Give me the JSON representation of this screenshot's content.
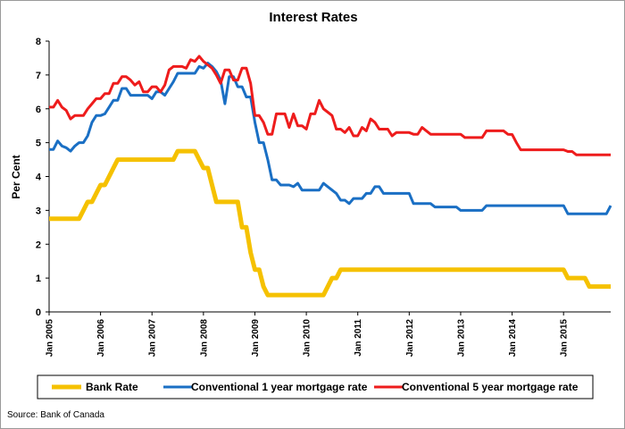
{
  "chart_data": {
    "type": "line",
    "title": "Interest Rates",
    "xlabel": "",
    "ylabel": "Per Cent",
    "ylim": [
      0,
      8
    ],
    "yticks": [
      "0",
      "1",
      "2",
      "3",
      "4",
      "5",
      "6",
      "7",
      "8"
    ],
    "xlim": [
      "2005-01",
      "2015-12"
    ],
    "xticks": [
      {
        "label": "Jan 2005",
        "date": "2005-01"
      },
      {
        "label": "Jan 2006",
        "date": "2006-01"
      },
      {
        "label": "Jan 2007",
        "date": "2007-01"
      },
      {
        "label": "Jan 2008",
        "date": "2008-01"
      },
      {
        "label": "Jan 2009",
        "date": "2009-01"
      },
      {
        "label": "Jan 2010",
        "date": "2010-01"
      },
      {
        "label": "Jan 2011",
        "date": "2011-01"
      },
      {
        "label": "Jan 2012",
        "date": "2012-01"
      },
      {
        "label": "Jan 2013",
        "date": "2013-01"
      },
      {
        "label": "Jan 2014",
        "date": "2014-01"
      },
      {
        "label": "Jan 2015",
        "date": "2015-01"
      }
    ],
    "grid": false,
    "legend_position": "bottom",
    "source": "Source: Bank of Canada",
    "series": [
      {
        "name": "Bank Rate",
        "color": "#f5c100",
        "points": [
          [
            "2005-01",
            2.75
          ],
          [
            "2005-08",
            2.75
          ],
          [
            "2005-09",
            3.0
          ],
          [
            "2005-10",
            3.25
          ],
          [
            "2005-11",
            3.25
          ],
          [
            "2005-12",
            3.5
          ],
          [
            "2006-01",
            3.75
          ],
          [
            "2006-02",
            3.75
          ],
          [
            "2006-03",
            4.0
          ],
          [
            "2006-04",
            4.25
          ],
          [
            "2006-05",
            4.5
          ],
          [
            "2007-06",
            4.5
          ],
          [
            "2007-07",
            4.75
          ],
          [
            "2007-11",
            4.75
          ],
          [
            "2007-12",
            4.5
          ],
          [
            "2008-01",
            4.25
          ],
          [
            "2008-02",
            4.25
          ],
          [
            "2008-03",
            3.75
          ],
          [
            "2008-04",
            3.25
          ],
          [
            "2008-09",
            3.25
          ],
          [
            "2008-10",
            2.5
          ],
          [
            "2008-11",
            2.5
          ],
          [
            "2008-12",
            1.75
          ],
          [
            "2009-01",
            1.25
          ],
          [
            "2009-02",
            1.25
          ],
          [
            "2009-03",
            0.75
          ],
          [
            "2009-04",
            0.5
          ],
          [
            "2010-05",
            0.5
          ],
          [
            "2010-06",
            0.75
          ],
          [
            "2010-07",
            1.0
          ],
          [
            "2010-08",
            1.0
          ],
          [
            "2010-09",
            1.25
          ],
          [
            "2015-01",
            1.25
          ],
          [
            "2015-02",
            1.0
          ],
          [
            "2015-06",
            1.0
          ],
          [
            "2015-07",
            0.75
          ],
          [
            "2015-12",
            0.75
          ]
        ]
      },
      {
        "name": "Conventional 1 year mortgage rate",
        "color": "#1a6fc4",
        "points": [
          [
            "2005-01",
            4.8
          ],
          [
            "2005-02",
            4.8
          ],
          [
            "2005-03",
            5.05
          ],
          [
            "2005-04",
            4.9
          ],
          [
            "2005-05",
            4.85
          ],
          [
            "2005-06",
            4.75
          ],
          [
            "2005-07",
            4.9
          ],
          [
            "2005-08",
            5.0
          ],
          [
            "2005-09",
            5.0
          ],
          [
            "2005-10",
            5.2
          ],
          [
            "2005-11",
            5.6
          ],
          [
            "2005-12",
            5.8
          ],
          [
            "2006-01",
            5.8
          ],
          [
            "2006-02",
            5.85
          ],
          [
            "2006-03",
            6.05
          ],
          [
            "2006-04",
            6.25
          ],
          [
            "2006-05",
            6.25
          ],
          [
            "2006-06",
            6.6
          ],
          [
            "2006-07",
            6.6
          ],
          [
            "2006-08",
            6.4
          ],
          [
            "2006-12",
            6.4
          ],
          [
            "2007-01",
            6.3
          ],
          [
            "2007-02",
            6.5
          ],
          [
            "2007-03",
            6.5
          ],
          [
            "2007-04",
            6.4
          ],
          [
            "2007-05",
            6.6
          ],
          [
            "2007-06",
            6.8
          ],
          [
            "2007-07",
            7.05
          ],
          [
            "2007-11",
            7.05
          ],
          [
            "2007-12",
            7.25
          ],
          [
            "2008-01",
            7.2
          ],
          [
            "2008-02",
            7.35
          ],
          [
            "2008-03",
            7.25
          ],
          [
            "2008-04",
            7.1
          ],
          [
            "2008-05",
            6.85
          ],
          [
            "2008-06",
            6.15
          ],
          [
            "2008-07",
            6.95
          ],
          [
            "2008-08",
            6.95
          ],
          [
            "2008-09",
            6.65
          ],
          [
            "2008-10",
            6.65
          ],
          [
            "2008-11",
            6.35
          ],
          [
            "2008-12",
            6.35
          ],
          [
            "2009-01",
            5.6
          ],
          [
            "2009-02",
            5.0
          ],
          [
            "2009-03",
            5.0
          ],
          [
            "2009-04",
            4.5
          ],
          [
            "2009-05",
            3.9
          ],
          [
            "2009-06",
            3.9
          ],
          [
            "2009-07",
            3.75
          ],
          [
            "2009-09",
            3.75
          ],
          [
            "2009-10",
            3.7
          ],
          [
            "2009-11",
            3.8
          ],
          [
            "2009-12",
            3.6
          ],
          [
            "2010-04",
            3.6
          ],
          [
            "2010-05",
            3.8
          ],
          [
            "2010-06",
            3.7
          ],
          [
            "2010-07",
            3.6
          ],
          [
            "2010-08",
            3.5
          ],
          [
            "2010-09",
            3.3
          ],
          [
            "2010-10",
            3.3
          ],
          [
            "2010-11",
            3.2
          ],
          [
            "2010-12",
            3.35
          ],
          [
            "2011-01",
            3.35
          ],
          [
            "2011-02",
            3.35
          ],
          [
            "2011-03",
            3.5
          ],
          [
            "2011-04",
            3.5
          ],
          [
            "2011-05",
            3.7
          ],
          [
            "2011-06",
            3.7
          ],
          [
            "2011-07",
            3.5
          ],
          [
            "2012-01",
            3.5
          ],
          [
            "2012-02",
            3.2
          ],
          [
            "2012-06",
            3.2
          ],
          [
            "2012-07",
            3.1
          ],
          [
            "2012-12",
            3.1
          ],
          [
            "2013-01",
            3.0
          ],
          [
            "2013-06",
            3.0
          ],
          [
            "2013-07",
            3.14
          ],
          [
            "2015-01",
            3.14
          ],
          [
            "2015-02",
            2.9
          ],
          [
            "2015-11",
            2.9
          ],
          [
            "2015-12",
            3.14
          ]
        ]
      },
      {
        "name": "Conventional 5 year mortgage rate",
        "color": "#ee1c1c",
        "points": [
          [
            "2005-01",
            6.05
          ],
          [
            "2005-02",
            6.05
          ],
          [
            "2005-03",
            6.25
          ],
          [
            "2005-04",
            6.05
          ],
          [
            "2005-05",
            5.95
          ],
          [
            "2005-06",
            5.7
          ],
          [
            "2005-07",
            5.8
          ],
          [
            "2005-09",
            5.8
          ],
          [
            "2005-10",
            6.0
          ],
          [
            "2005-11",
            6.15
          ],
          [
            "2005-12",
            6.3
          ],
          [
            "2006-01",
            6.3
          ],
          [
            "2006-02",
            6.45
          ],
          [
            "2006-03",
            6.45
          ],
          [
            "2006-04",
            6.75
          ],
          [
            "2006-05",
            6.75
          ],
          [
            "2006-06",
            6.95
          ],
          [
            "2006-07",
            6.95
          ],
          [
            "2006-08",
            6.85
          ],
          [
            "2006-09",
            6.7
          ],
          [
            "2006-10",
            6.8
          ],
          [
            "2006-11",
            6.5
          ],
          [
            "2006-12",
            6.5
          ],
          [
            "2007-01",
            6.65
          ],
          [
            "2007-02",
            6.65
          ],
          [
            "2007-03",
            6.5
          ],
          [
            "2007-04",
            6.7
          ],
          [
            "2007-05",
            7.15
          ],
          [
            "2007-06",
            7.25
          ],
          [
            "2007-08",
            7.25
          ],
          [
            "2007-09",
            7.2
          ],
          [
            "2007-10",
            7.45
          ],
          [
            "2007-11",
            7.4
          ],
          [
            "2007-12",
            7.55
          ],
          [
            "2008-01",
            7.4
          ],
          [
            "2008-02",
            7.3
          ],
          [
            "2008-03",
            7.2
          ],
          [
            "2008-04",
            7.0
          ],
          [
            "2008-05",
            6.75
          ],
          [
            "2008-06",
            7.15
          ],
          [
            "2008-07",
            7.15
          ],
          [
            "2008-08",
            6.85
          ],
          [
            "2008-09",
            6.85
          ],
          [
            "2008-10",
            7.2
          ],
          [
            "2008-11",
            7.2
          ],
          [
            "2008-12",
            6.75
          ],
          [
            "2009-01",
            5.8
          ],
          [
            "2009-02",
            5.8
          ],
          [
            "2009-03",
            5.6
          ],
          [
            "2009-04",
            5.25
          ],
          [
            "2009-05",
            5.25
          ],
          [
            "2009-06",
            5.85
          ],
          [
            "2009-07",
            5.85
          ],
          [
            "2009-08",
            5.85
          ],
          [
            "2009-09",
            5.45
          ],
          [
            "2009-10",
            5.85
          ],
          [
            "2009-11",
            5.5
          ],
          [
            "2009-12",
            5.5
          ],
          [
            "2010-01",
            5.4
          ],
          [
            "2010-02",
            5.85
          ],
          [
            "2010-03",
            5.85
          ],
          [
            "2010-04",
            6.25
          ],
          [
            "2010-05",
            6.0
          ],
          [
            "2010-06",
            5.9
          ],
          [
            "2010-07",
            5.8
          ],
          [
            "2010-08",
            5.4
          ],
          [
            "2010-09",
            5.4
          ],
          [
            "2010-10",
            5.3
          ],
          [
            "2010-11",
            5.45
          ],
          [
            "2010-12",
            5.2
          ],
          [
            "2011-01",
            5.2
          ],
          [
            "2011-02",
            5.45
          ],
          [
            "2011-03",
            5.35
          ],
          [
            "2011-04",
            5.7
          ],
          [
            "2011-05",
            5.6
          ],
          [
            "2011-06",
            5.4
          ],
          [
            "2011-08",
            5.4
          ],
          [
            "2011-09",
            5.2
          ],
          [
            "2011-10",
            5.3
          ],
          [
            "2012-01",
            5.3
          ],
          [
            "2012-02",
            5.25
          ],
          [
            "2012-03",
            5.25
          ],
          [
            "2012-04",
            5.45
          ],
          [
            "2012-05",
            5.35
          ],
          [
            "2012-06",
            5.25
          ],
          [
            "2013-01",
            5.25
          ],
          [
            "2013-02",
            5.15
          ],
          [
            "2013-06",
            5.15
          ],
          [
            "2013-07",
            5.35
          ],
          [
            "2013-11",
            5.35
          ],
          [
            "2013-12",
            5.25
          ],
          [
            "2014-01",
            5.24
          ],
          [
            "2014-02",
            5.0
          ],
          [
            "2014-03",
            4.79
          ],
          [
            "2015-01",
            4.79
          ],
          [
            "2015-02",
            4.74
          ],
          [
            "2015-03",
            4.74
          ],
          [
            "2015-04",
            4.64
          ],
          [
            "2015-12",
            4.64
          ]
        ]
      }
    ]
  }
}
